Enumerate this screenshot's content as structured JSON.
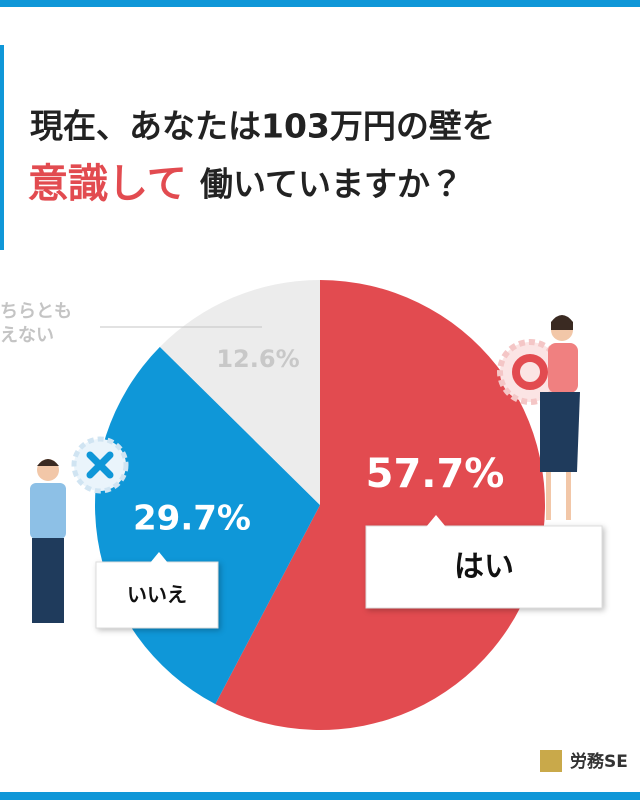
{
  "chart_data": {
    "type": "pie",
    "title_line1": "現在、あなたは103万円の壁を",
    "title_highlight": "意識して",
    "title_line2_rest": "働いていますか？",
    "categories": [
      "はい",
      "いいえ",
      "どちらともいえない"
    ],
    "values": [
      57.7,
      29.7,
      12.6
    ],
    "value_labels": [
      "57.7%",
      "29.7%",
      "12.6%"
    ],
    "colors": [
      "#e24b50",
      "#0f97d8",
      "#ececec"
    ],
    "brand": "労務SE"
  }
}
